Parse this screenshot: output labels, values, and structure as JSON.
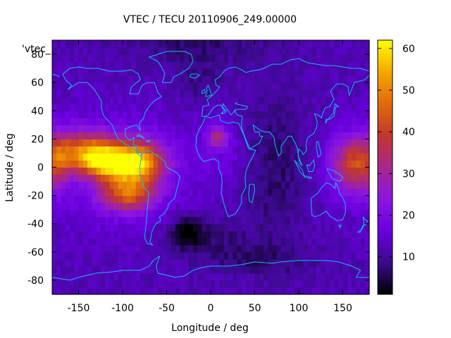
{
  "chart_data": {
    "type": "heatmap",
    "title": "VTEC / TECU 20110906_249.00000",
    "xlabel": "Longitude / deg",
    "ylabel": "Latitude / deg",
    "legend_label": "'vtec_",
    "xlim": [
      -180,
      180
    ],
    "ylim": [
      -90,
      90
    ],
    "x_ticks": [
      -150,
      -100,
      -50,
      0,
      50,
      100,
      150
    ],
    "y_ticks": [
      -80,
      -60,
      -40,
      -20,
      0,
      20,
      40,
      60,
      80
    ],
    "colorbar": {
      "range": [
        1,
        62
      ],
      "ticks": [
        10,
        20,
        30,
        40,
        50,
        60
      ],
      "palette": [
        "#000000",
        "#3a0a8c",
        "#6a00e0",
        "#8b16e0",
        "#a7278a",
        "#c2372e",
        "#e06a0a",
        "#f5a800",
        "#ffff00"
      ]
    },
    "grid_resolution": {
      "dlon": 5,
      "dlat": 5
    },
    "field_features": [
      {
        "feature": "equatorial anomaly America",
        "lon": -100,
        "lat": 5,
        "vtec": 60
      },
      {
        "feature": "crest north America",
        "lon": -130,
        "lat": 15,
        "vtec": 48
      },
      {
        "feature": "crest south America",
        "lon": -90,
        "lat": -20,
        "vtec": 46
      },
      {
        "feature": "West Pacific crest",
        "lon": 160,
        "lat": 5,
        "vtec": 45
      },
      {
        "feature": "Africa local peak",
        "lon": 10,
        "lat": 22,
        "vtec": 33
      },
      {
        "feature": "Indian Ocean minimum",
        "lon": 60,
        "lat": 0,
        "vtec": 8
      },
      {
        "feature": "South Atlantic minimum",
        "lon": -25,
        "lat": -45,
        "vtec": 2
      }
    ]
  }
}
